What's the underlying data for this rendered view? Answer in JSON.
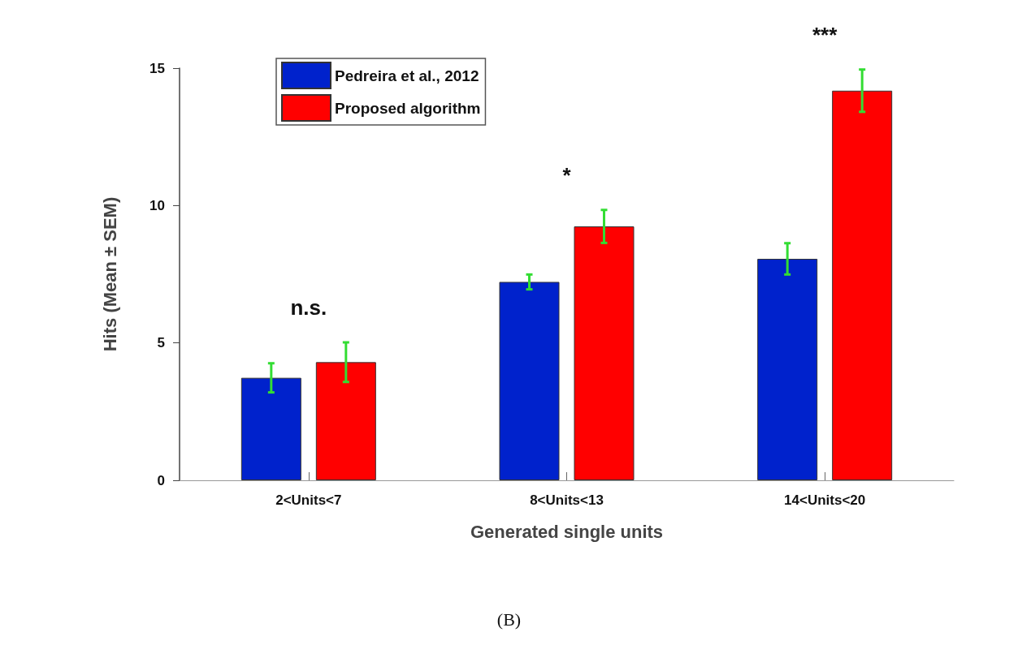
{
  "chart_data": {
    "type": "bar",
    "xlabel": "Generated single units",
    "ylabel": "Hits (Mean ± SEM)",
    "categories": [
      "2<Units<7",
      "8<Units<13",
      "14<Units<20"
    ],
    "series": [
      {
        "name": "Pedreira et al., 2012",
        "color": "#0022cc",
        "values": [
          3.73,
          7.22,
          8.06
        ],
        "errors": [
          0.53,
          0.27,
          0.57
        ]
      },
      {
        "name": "Proposed algorithm",
        "color": "#ff0000",
        "values": [
          4.3,
          9.24,
          14.18
        ],
        "errors": [
          0.72,
          0.6,
          0.77
        ]
      }
    ],
    "ylim": [
      0,
      15
    ],
    "yticks": [
      0,
      5,
      10,
      15
    ],
    "grid": false,
    "legend": "top left",
    "annotations": [
      "n.s.",
      "*",
      "***",
      "(B)"
    ]
  }
}
